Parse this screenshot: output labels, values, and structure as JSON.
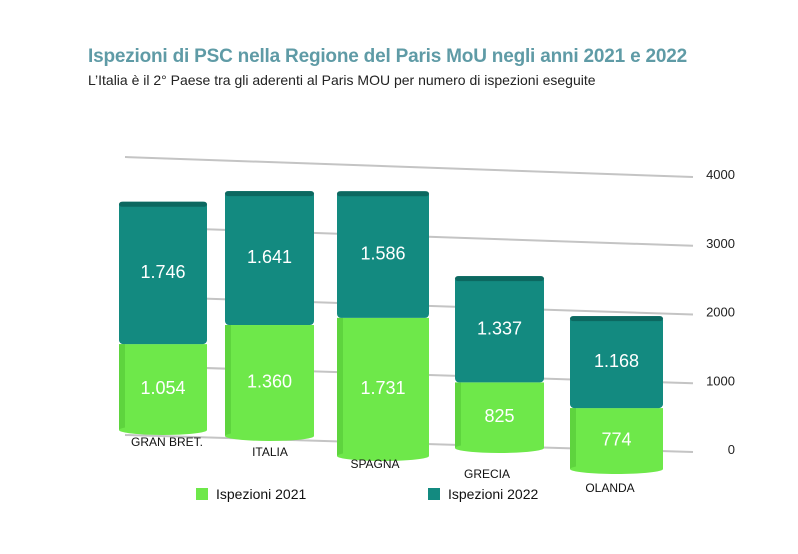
{
  "title": "Ispezioni di PSC nella Regione del Paris MoU negli anni 2021 e 2022",
  "subtitle": "L’Italia è il 2° Paese tra gli aderenti al Paris MOU per numero di ispezioni eseguite",
  "colors": {
    "s2021": "#6ee84a",
    "s2021_dark": "#4dbf32",
    "s2022": "#138a80",
    "s2022_dark": "#0c6860",
    "grid": "#c4c4c4",
    "title": "#5f9ba6"
  },
  "chart_data": {
    "type": "bar",
    "stacked": true,
    "categories": [
      "GRAN BRET.",
      "ITALIA",
      "SPAGNA",
      "GRECIA",
      "OLANDA"
    ],
    "series": [
      {
        "name": "Ispezioni 2021",
        "values": [
          1054,
          1360,
          1731,
          825,
          774
        ],
        "labels": [
          "1.054",
          "1.360",
          "1.731",
          "825",
          "774"
        ]
      },
      {
        "name": "Ispezioni 2022",
        "values": [
          1746,
          1641,
          1586,
          1337,
          1168
        ],
        "labels": [
          "1.746",
          "1.641",
          "1.586",
          "1.337",
          "1.168"
        ]
      }
    ],
    "y_ticks": [
      "0",
      "1000",
      "2000",
      "3000",
      "4000"
    ],
    "ylim": [
      0,
      4000
    ],
    "legend_position": "bottom"
  }
}
